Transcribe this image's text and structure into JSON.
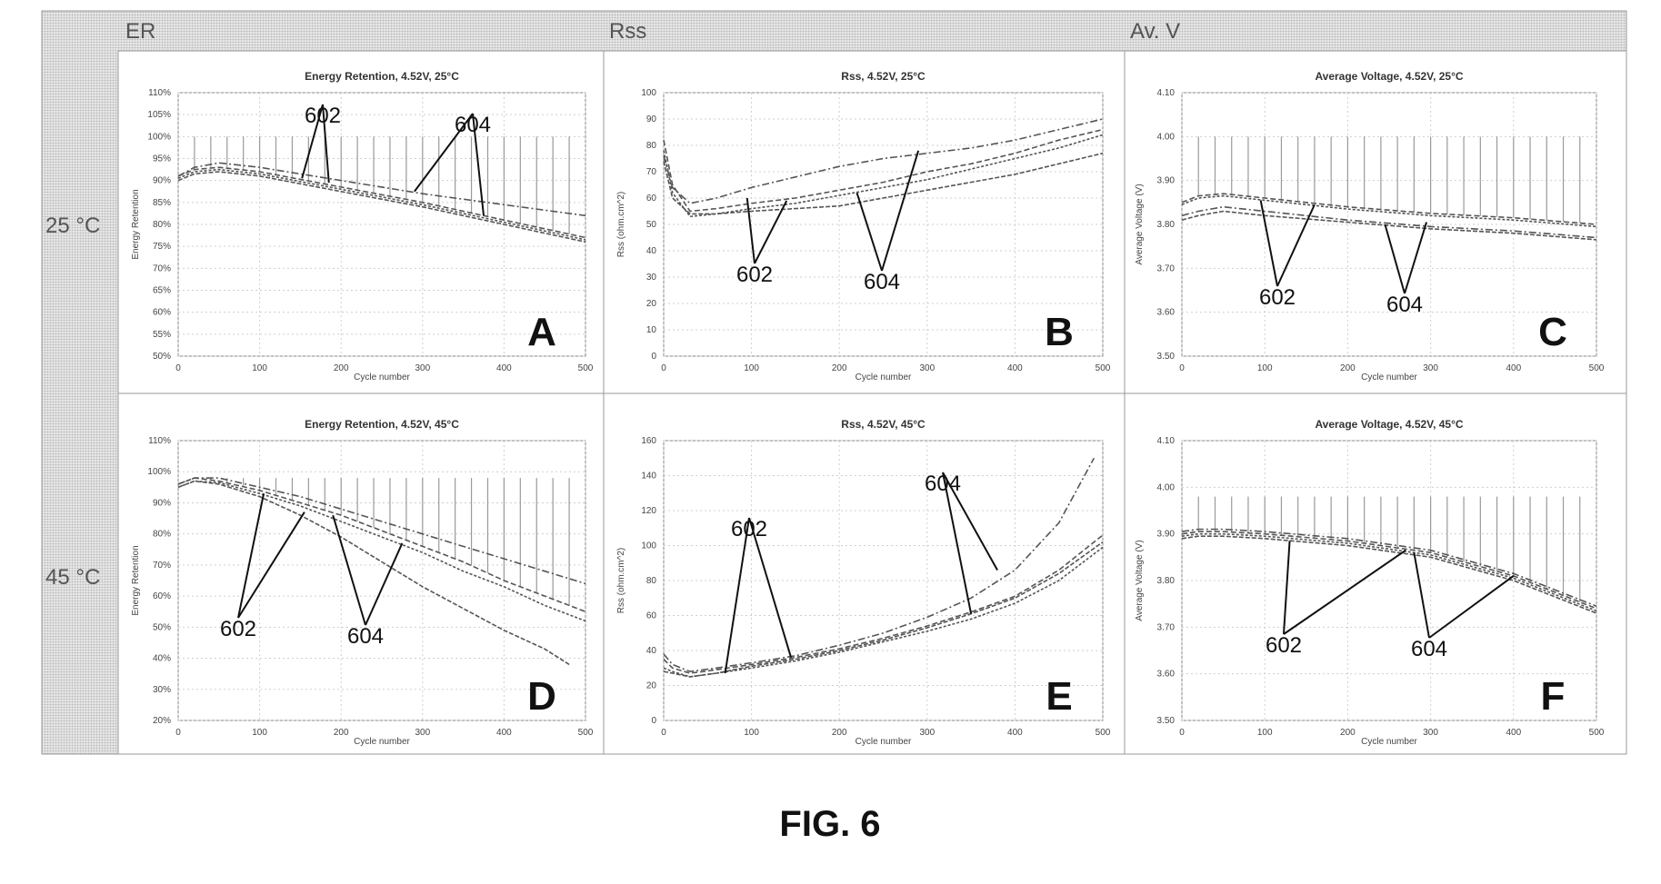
{
  "headers": {
    "col1": "ER",
    "col2": "Rss",
    "col3": "Av. V",
    "row1": "25 °C",
    "row2": "45 °C"
  },
  "figure_caption": "FIG. 6",
  "colors": {
    "grid_bg": "#d9d9d9",
    "frame": "#9a9a9a",
    "line": "#555555",
    "dots": "#bdbdbd"
  },
  "chart_data": [
    {
      "id": "A",
      "type": "line",
      "title": "Energy Retention, 4.52V, 25°C",
      "xlabel": "Cycle number",
      "ylabel": "Energy Retention",
      "xlim": [
        0,
        500
      ],
      "ylim": [
        0.5,
        1.1
      ],
      "xticks": [
        0,
        100,
        200,
        300,
        400,
        500
      ],
      "yticks": [
        "50%",
        "55%",
        "60%",
        "65%",
        "70%",
        "75%",
        "80%",
        "85%",
        "90%",
        "95%",
        "100%",
        "105%",
        "110%"
      ],
      "yvals": [
        0.5,
        0.55,
        0.6,
        0.65,
        0.7,
        0.75,
        0.8,
        0.85,
        0.9,
        0.95,
        1.0,
        1.05,
        1.1
      ],
      "labels": [
        "602",
        "604"
      ],
      "letter": "A",
      "series": [
        {
          "name": "602",
          "x": [
            0,
            20,
            50,
            100,
            200,
            300,
            400,
            500
          ],
          "y": [
            0.91,
            0.925,
            0.93,
            0.92,
            0.885,
            0.85,
            0.81,
            0.77
          ]
        },
        {
          "name": "602",
          "x": [
            0,
            20,
            50,
            100,
            200,
            300,
            400,
            500
          ],
          "y": [
            0.905,
            0.92,
            0.925,
            0.915,
            0.88,
            0.845,
            0.805,
            0.765
          ]
        },
        {
          "name": "604",
          "x": [
            0,
            20,
            50,
            100,
            200,
            300,
            400,
            500
          ],
          "y": [
            0.91,
            0.93,
            0.94,
            0.93,
            0.9,
            0.87,
            0.845,
            0.82
          ]
        },
        {
          "name": "604",
          "x": [
            0,
            20,
            50,
            100,
            200,
            300,
            400,
            500
          ],
          "y": [
            0.9,
            0.915,
            0.92,
            0.91,
            0.875,
            0.84,
            0.8,
            0.76
          ]
        }
      ],
      "error_top": 1.0
    },
    {
      "id": "B",
      "type": "line",
      "title": "Rss, 4.52V, 25°C",
      "xlabel": "Cycle number",
      "ylabel": "Rss (ohm.cm^2)",
      "xlim": [
        0,
        500
      ],
      "ylim": [
        0,
        100
      ],
      "xticks": [
        0,
        100,
        200,
        300,
        400,
        500
      ],
      "yticks": [
        "0",
        "10",
        "20",
        "30",
        "40",
        "50",
        "60",
        "70",
        "80",
        "90",
        "100"
      ],
      "yvals": [
        0,
        10,
        20,
        30,
        40,
        50,
        60,
        70,
        80,
        90,
        100
      ],
      "labels": [
        "602",
        "604"
      ],
      "letter": "B",
      "series": [
        {
          "name": "602",
          "x": [
            0,
            10,
            30,
            60,
            100,
            150,
            200,
            250,
            300,
            350,
            400,
            450,
            500
          ],
          "y": [
            82,
            65,
            55,
            56,
            58,
            60,
            63,
            66,
            70,
            73,
            77,
            82,
            86
          ]
        },
        {
          "name": "602",
          "x": [
            0,
            10,
            30,
            60,
            100,
            150,
            200,
            250,
            300,
            350,
            400,
            450,
            500
          ],
          "y": [
            78,
            62,
            53,
            54,
            56,
            58,
            61,
            64,
            67,
            71,
            75,
            79,
            84
          ]
        },
        {
          "name": "604",
          "x": [
            0,
            10,
            30,
            60,
            100,
            150,
            200,
            250,
            300,
            350,
            400,
            450,
            500
          ],
          "y": [
            76,
            64,
            58,
            60,
            64,
            68,
            72,
            75,
            77,
            79,
            82,
            86,
            90
          ]
        },
        {
          "name": "604",
          "x": [
            0,
            10,
            30,
            60,
            100,
            150,
            200,
            250,
            300,
            350,
            400,
            450,
            500
          ],
          "y": [
            74,
            60,
            54,
            54,
            55,
            56,
            57,
            60,
            63,
            66,
            69,
            73,
            77
          ]
        }
      ]
    },
    {
      "id": "C",
      "type": "line",
      "title": "Average Voltage, 4.52V, 25°C",
      "xlabel": "Cycle number",
      "ylabel": "Average Voltage (V)",
      "xlim": [
        0,
        500
      ],
      "ylim": [
        3.5,
        4.1
      ],
      "xticks": [
        0,
        100,
        200,
        300,
        400,
        500
      ],
      "yticks": [
        "3.50",
        "3.60",
        "3.70",
        "3.80",
        "3.90",
        "4.00",
        "4.10"
      ],
      "yvals": [
        3.5,
        3.6,
        3.7,
        3.8,
        3.9,
        4.0,
        4.1
      ],
      "labels": [
        "602",
        "604"
      ],
      "letter": "C",
      "series": [
        {
          "name": "602",
          "x": [
            0,
            20,
            50,
            100,
            200,
            300,
            400,
            500
          ],
          "y": [
            3.85,
            3.865,
            3.87,
            3.86,
            3.84,
            3.825,
            3.815,
            3.8
          ]
        },
        {
          "name": "602",
          "x": [
            0,
            20,
            50,
            100,
            200,
            300,
            400,
            500
          ],
          "y": [
            3.845,
            3.86,
            3.865,
            3.855,
            3.835,
            3.82,
            3.81,
            3.795
          ]
        },
        {
          "name": "604",
          "x": [
            0,
            20,
            50,
            100,
            200,
            300,
            400,
            500
          ],
          "y": [
            3.82,
            3.83,
            3.84,
            3.83,
            3.81,
            3.795,
            3.785,
            3.77
          ]
        },
        {
          "name": "604",
          "x": [
            0,
            20,
            50,
            100,
            200,
            300,
            400,
            500
          ],
          "y": [
            3.81,
            3.82,
            3.83,
            3.82,
            3.805,
            3.79,
            3.78,
            3.765
          ]
        }
      ],
      "error_top": 4.0
    },
    {
      "id": "D",
      "type": "line",
      "title": "Energy Retention, 4.52V, 45°C",
      "xlabel": "Cycle number",
      "ylabel": "Energy Retention",
      "xlim": [
        0,
        500
      ],
      "ylim": [
        0.2,
        1.1
      ],
      "xticks": [
        0,
        100,
        200,
        300,
        400,
        500
      ],
      "yticks": [
        "20%",
        "30%",
        "40%",
        "50%",
        "60%",
        "70%",
        "80%",
        "90%",
        "100%",
        "110%"
      ],
      "yvals": [
        0.2,
        0.3,
        0.4,
        0.5,
        0.6,
        0.7,
        0.8,
        0.9,
        1.0,
        1.1
      ],
      "labels": [
        "602",
        "604"
      ],
      "letter": "D",
      "series": [
        {
          "name": "602",
          "x": [
            0,
            20,
            50,
            100,
            150,
            200,
            250,
            300,
            350,
            400,
            450,
            500
          ],
          "y": [
            0.96,
            0.98,
            0.97,
            0.94,
            0.9,
            0.86,
            0.81,
            0.76,
            0.71,
            0.65,
            0.6,
            0.55
          ]
        },
        {
          "name": "602",
          "x": [
            0,
            20,
            50,
            100,
            150,
            200,
            250,
            300,
            350,
            400,
            450,
            500
          ],
          "y": [
            0.95,
            0.97,
            0.965,
            0.93,
            0.89,
            0.84,
            0.79,
            0.74,
            0.68,
            0.63,
            0.57,
            0.52
          ]
        },
        {
          "name": "604",
          "x": [
            0,
            20,
            50,
            100,
            150,
            200,
            250,
            300,
            350,
            400,
            450,
            500
          ],
          "y": [
            0.96,
            0.98,
            0.98,
            0.95,
            0.92,
            0.88,
            0.84,
            0.8,
            0.76,
            0.72,
            0.68,
            0.64
          ]
        },
        {
          "name": "604",
          "x": [
            0,
            20,
            50,
            100,
            150,
            200,
            250,
            300,
            350,
            400,
            450,
            480
          ],
          "y": [
            0.95,
            0.97,
            0.96,
            0.92,
            0.86,
            0.79,
            0.71,
            0.63,
            0.56,
            0.49,
            0.43,
            0.38
          ]
        }
      ],
      "error_top": 0.98
    },
    {
      "id": "E",
      "type": "line",
      "title": "Rss, 4.52V, 45°C",
      "xlabel": "Cycle number",
      "ylabel": "Rss (ohm.cm^2)",
      "xlim": [
        0,
        500
      ],
      "ylim": [
        0,
        160
      ],
      "xticks": [
        0,
        100,
        200,
        300,
        400,
        500
      ],
      "yticks": [
        "0",
        "20",
        "40",
        "60",
        "80",
        "100",
        "120",
        "140",
        "160"
      ],
      "yvals": [
        0,
        20,
        40,
        60,
        80,
        100,
        120,
        140,
        160
      ],
      "labels": [
        "602",
        "604"
      ],
      "letter": "E",
      "series": [
        {
          "name": "602",
          "x": [
            0,
            10,
            30,
            60,
            100,
            150,
            200,
            250,
            300,
            350,
            400,
            450,
            500
          ],
          "y": [
            35,
            30,
            27,
            29,
            32,
            36,
            41,
            47,
            54,
            62,
            71,
            86,
            106
          ]
        },
        {
          "name": "602",
          "x": [
            0,
            10,
            30,
            60,
            100,
            150,
            200,
            250,
            300,
            350,
            400,
            450,
            500
          ],
          "y": [
            30,
            28,
            25,
            27,
            30,
            34,
            39,
            45,
            51,
            58,
            67,
            80,
            99
          ]
        },
        {
          "name": "604",
          "x": [
            0,
            10,
            30,
            60,
            100,
            150,
            200,
            250,
            300,
            350,
            400,
            450,
            490
          ],
          "y": [
            38,
            32,
            28,
            30,
            33,
            37,
            43,
            50,
            59,
            70,
            86,
            113,
            150
          ]
        },
        {
          "name": "604",
          "x": [
            0,
            10,
            30,
            60,
            100,
            150,
            200,
            250,
            300,
            350,
            400,
            450,
            500
          ],
          "y": [
            28,
            27,
            25,
            27,
            31,
            35,
            40,
            46,
            53,
            61,
            70,
            84,
            102
          ]
        }
      ]
    },
    {
      "id": "F",
      "type": "line",
      "title": "Average Voltage, 4.52V, 45°C",
      "xlabel": "Cycle number",
      "ylabel": "Average Voltage (V)",
      "xlim": [
        0,
        500
      ],
      "ylim": [
        3.5,
        4.1
      ],
      "xticks": [
        0,
        100,
        200,
        300,
        400,
        500
      ],
      "yticks": [
        "3.50",
        "3.60",
        "3.70",
        "3.80",
        "3.90",
        "4.00",
        "4.10"
      ],
      "yvals": [
        3.5,
        3.6,
        3.7,
        3.8,
        3.9,
        4.0,
        4.1
      ],
      "labels": [
        "602",
        "604"
      ],
      "letter": "F",
      "series": [
        {
          "name": "602",
          "x": [
            0,
            20,
            50,
            100,
            200,
            300,
            400,
            500
          ],
          "y": [
            3.9,
            3.905,
            3.905,
            3.9,
            3.885,
            3.86,
            3.81,
            3.74
          ]
        },
        {
          "name": "602",
          "x": [
            0,
            20,
            50,
            100,
            200,
            300,
            400,
            500
          ],
          "y": [
            3.895,
            3.9,
            3.9,
            3.895,
            3.88,
            3.855,
            3.805,
            3.735
          ]
        },
        {
          "name": "604",
          "x": [
            0,
            20,
            50,
            100,
            200,
            300,
            400,
            500
          ],
          "y": [
            3.905,
            3.91,
            3.91,
            3.905,
            3.89,
            3.865,
            3.815,
            3.745
          ]
        },
        {
          "name": "604",
          "x": [
            0,
            20,
            50,
            100,
            200,
            300,
            400,
            500
          ],
          "y": [
            3.89,
            3.895,
            3.895,
            3.89,
            3.875,
            3.85,
            3.8,
            3.73
          ]
        }
      ],
      "error_top": 3.98
    }
  ]
}
